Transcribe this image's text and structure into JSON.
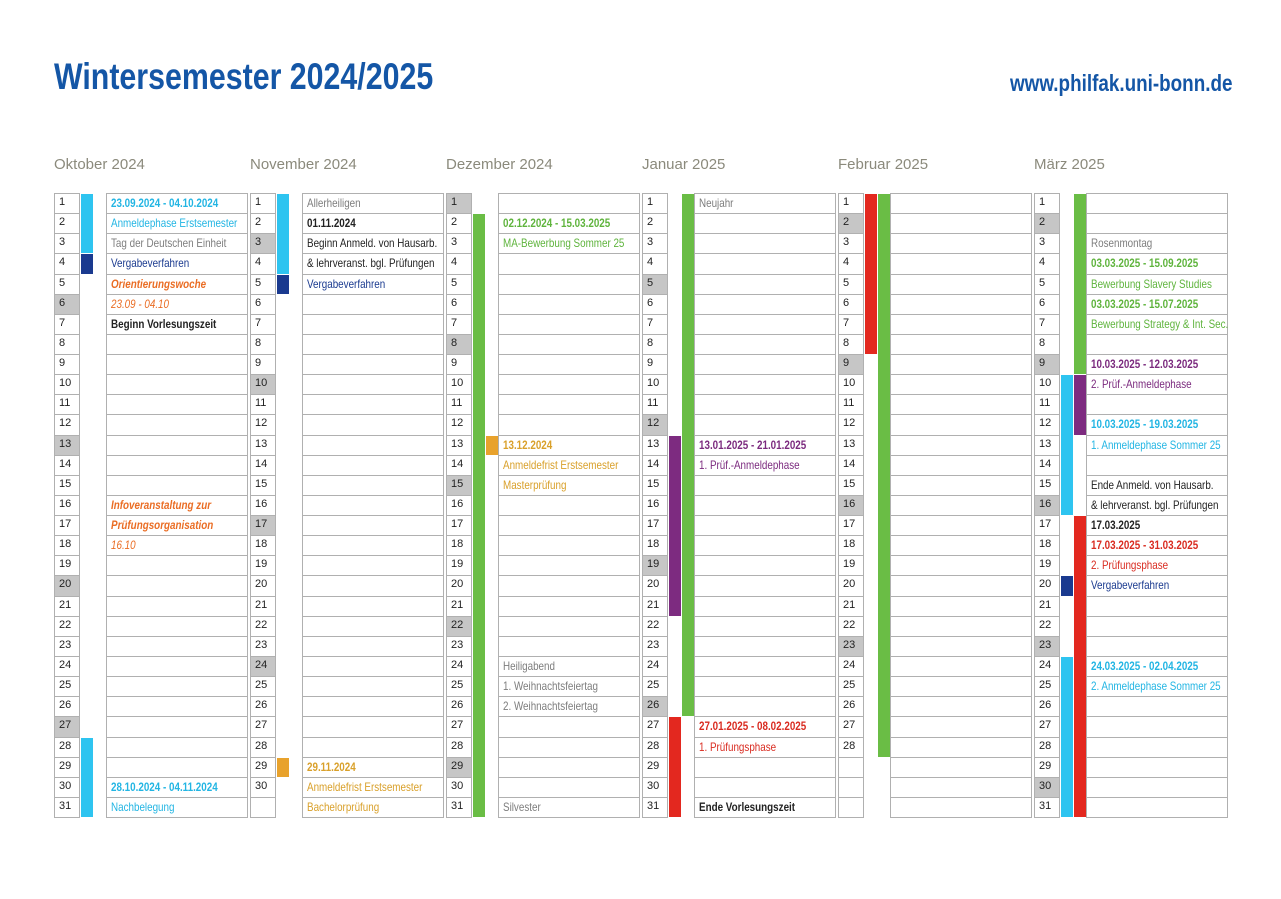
{
  "header": {
    "title": "Wintersemester 2024/2025",
    "url": "www.philfak.uni-bonn.de"
  },
  "months": [
    {
      "name": "Oktober 2024",
      "days": [
        "1",
        "2",
        "3",
        "4",
        "5",
        "6",
        "7",
        "8",
        "9",
        "10",
        "11",
        "12",
        "13",
        "14",
        "15",
        "16",
        "17",
        "18",
        "19",
        "20",
        "21",
        "22",
        "23",
        "24",
        "25",
        "26",
        "27",
        "28",
        "29",
        "30",
        "31"
      ],
      "notes": {
        "1": {
          "text": "23.09.2024 - 04.10.2024",
          "color": "#22b5e3",
          "bold": true
        },
        "2": {
          "text": "Anmeldephase Erstsemester",
          "color": "#22b5e3"
        },
        "3": {
          "text": "Tag der Deutschen Einheit",
          "color": "#7d7d7d"
        },
        "4": {
          "text": "Vergabeverfahren",
          "color": "#1a3a8f"
        },
        "5": {
          "text": "Orientierungswoche",
          "color": "#ea6d24",
          "bold": true,
          "italic": true
        },
        "6": {
          "text": "23.09 - 04.10",
          "color": "#ea6d24",
          "italic": true
        },
        "7": {
          "text": "Beginn Vorlesungszeit",
          "color": "#222222",
          "bold": true
        },
        "16": {
          "text": "Infoveranstaltung zur",
          "color": "#ea6d24",
          "bold": true,
          "italic": true
        },
        "17": {
          "text": "Prüfungsorganisation",
          "color": "#ea6d24",
          "bold": true,
          "italic": true
        },
        "18": {
          "text": "16.10",
          "color": "#ea6d24",
          "italic": true
        },
        "30": {
          "text": "28.10.2024 - 04.11.2024",
          "color": "#22b5e3",
          "bold": true
        },
        "31": {
          "text": "Nachbelegung",
          "color": "#22b5e3"
        }
      }
    },
    {
      "name": "November 2024",
      "days": [
        "1",
        "2",
        "3",
        "4",
        "5",
        "6",
        "7",
        "8",
        "9",
        "10",
        "11",
        "12",
        "13",
        "14",
        "15",
        "16",
        "17",
        "18",
        "19",
        "20",
        "21",
        "22",
        "23",
        "24",
        "25",
        "26",
        "27",
        "28",
        "29",
        "30"
      ],
      "notes": {
        "1": {
          "text": "Allerheiligen",
          "color": "#7d7d7d"
        },
        "2": {
          "text": "01.11.2024",
          "color": "#222222",
          "bold": true
        },
        "3": {
          "text": "Beginn Anmeld. von Hausarb.",
          "color": "#222222"
        },
        "4": {
          "text": "& lehrveranst. bgl. Prüfungen",
          "color": "#222222"
        },
        "5": {
          "text": "Vergabeverfahren",
          "color": "#1a3a8f"
        },
        "29": {
          "text": "29.11.2024",
          "color": "#d9a02a",
          "bold": true
        },
        "30": {
          "text": "Anmeldefrist Erstsemester",
          "color": "#d9a02a"
        },
        "31": {
          "text": "Bachelorprüfung",
          "color": "#d9a02a"
        }
      }
    },
    {
      "name": "Dezember 2024",
      "days": [
        "1",
        "2",
        "3",
        "4",
        "5",
        "6",
        "7",
        "8",
        "9",
        "10",
        "11",
        "12",
        "13",
        "14",
        "15",
        "16",
        "17",
        "18",
        "19",
        "20",
        "21",
        "22",
        "23",
        "24",
        "25",
        "26",
        "27",
        "28",
        "29",
        "30",
        "31"
      ],
      "notes": {
        "2": {
          "text": "02.12.2024 - 15.03.2025",
          "color": "#5fb43d",
          "bold": true
        },
        "3": {
          "text": "MA-Bewerbung Sommer 25",
          "color": "#5fb43d"
        },
        "13": {
          "text": "13.12.2024",
          "color": "#d9a02a",
          "bold": true
        },
        "14": {
          "text": "Anmeldefrist Erstsemester",
          "color": "#d9a02a"
        },
        "15": {
          "text": "Masterprüfung",
          "color": "#d9a02a"
        },
        "24": {
          "text": "Heiligabend",
          "color": "#7d7d7d"
        },
        "25": {
          "text": "1. Weihnachtsfeiertag",
          "color": "#7d7d7d"
        },
        "26": {
          "text": "2. Weihnachtsfeiertag",
          "color": "#7d7d7d"
        },
        "31": {
          "text": "Silvester",
          "color": "#7d7d7d"
        }
      }
    },
    {
      "name": "Januar 2025",
      "days": [
        "1",
        "2",
        "3",
        "4",
        "5",
        "6",
        "7",
        "8",
        "9",
        "10",
        "11",
        "12",
        "13",
        "14",
        "15",
        "16",
        "17",
        "18",
        "19",
        "20",
        "21",
        "22",
        "23",
        "24",
        "25",
        "26",
        "27",
        "28",
        "29",
        "30",
        "31"
      ],
      "notes": {
        "1": {
          "text": "Neujahr",
          "color": "#7d7d7d"
        },
        "13": {
          "text": "13.01.2025 - 21.01.2025",
          "color": "#7b2a7e",
          "bold": true
        },
        "14": {
          "text": "1. Prüf.-Anmeldephase",
          "color": "#7b2a7e"
        },
        "27": {
          "text": "27.01.2025 - 08.02.2025",
          "color": "#d92b20",
          "bold": true
        },
        "28": {
          "text": "1. Prüfungsphase",
          "color": "#d92b20"
        },
        "31": {
          "text": "Ende Vorlesungszeit",
          "color": "#222222",
          "bold": true
        }
      }
    },
    {
      "name": "Februar 2025",
      "days": [
        "1",
        "2",
        "3",
        "4",
        "5",
        "6",
        "7",
        "8",
        "9",
        "10",
        "11",
        "12",
        "13",
        "14",
        "15",
        "16",
        "17",
        "18",
        "19",
        "20",
        "21",
        "22",
        "23",
        "24",
        "25",
        "26",
        "27",
        "28"
      ],
      "notes": {}
    },
    {
      "name": "März 2025",
      "days": [
        "1",
        "2",
        "3",
        "4",
        "5",
        "6",
        "7",
        "8",
        "9",
        "10",
        "11",
        "12",
        "13",
        "14",
        "15",
        "16",
        "17",
        "18",
        "19",
        "20",
        "21",
        "22",
        "23",
        "24",
        "25",
        "26",
        "27",
        "28",
        "29",
        "30",
        "31"
      ],
      "notes": {
        "3": {
          "text": "Rosenmontag",
          "color": "#7d7d7d"
        },
        "4": {
          "text": "03.03.2025 - 15.09.2025",
          "color": "#5fb43d",
          "bold": true
        },
        "5": {
          "text": "Bewerbung Slavery Studies",
          "color": "#5fb43d"
        },
        "6": {
          "text": "03.03.2025 - 15.07.2025",
          "color": "#5fb43d",
          "bold": true
        },
        "7": {
          "text": "Bewerbung Strategy & Int. Sec.",
          "color": "#5fb43d"
        },
        "9": {
          "text": "10.03.2025 - 12.03.2025",
          "color": "#7b2a7e",
          "bold": true
        },
        "10": {
          "text": "2. Prüf.-Anmeldephase",
          "color": "#7b2a7e"
        },
        "12": {
          "text": "10.03.2025 - 19.03.2025",
          "color": "#22b5e3",
          "bold": true
        },
        "13": {
          "text": "1. Anmeldephase Sommer 25",
          "color": "#22b5e3"
        },
        "15": {
          "text": "Ende Anmeld. von Hausarb.",
          "color": "#222222"
        },
        "16": {
          "text": "& lehrveranst. bgl. Prüfungen",
          "color": "#222222"
        },
        "17": {
          "text": "17.03.2025",
          "color": "#222222",
          "bold": true
        },
        "18": {
          "text": "17.03.2025 - 31.03.2025",
          "color": "#d92b20",
          "bold": true
        },
        "19": {
          "text": "2. Prüfungsphase",
          "color": "#d92b20"
        },
        "20": {
          "text": "Vergabeverfahren",
          "color": "#1a3a8f"
        },
        "24": {
          "text": "24.03.2025 - 02.04.2025",
          "color": "#22b5e3",
          "bold": true
        },
        "25": {
          "text": "2. Anmeldephase Sommer 25",
          "color": "#22b5e3"
        }
      }
    }
  ]
}
